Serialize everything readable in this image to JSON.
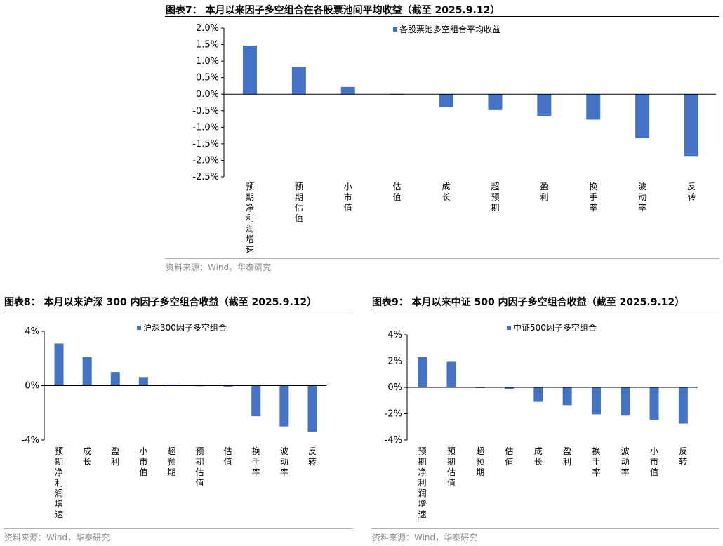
{
  "figures": [
    {
      "title": "图表7：  本月以来因子多空组合在各股票池间平均收益（截至 2025.9.12）",
      "source": "资料来源：Wind，华泰研究"
    },
    {
      "title": "图表8：  本月以来沪深 300 内因子多空组合收益（截至 2025.9.12）",
      "source": "资料来源：Wind，华泰研究"
    },
    {
      "title": "图表9：  本月以来中证 500 内因子多空组合收益（截至 2025.9.12）",
      "source": "资料来源：Wind，华泰研究"
    }
  ],
  "chart_data": [
    {
      "type": "bar",
      "title": "图表7：  本月以来因子多空组合在各股票池间平均收益（截至 2025.9.12）",
      "legend": "各股票池多空组合平均收益",
      "legend_position": "top-right",
      "categories": [
        "预期净利润增速",
        "预期估值",
        "小市值",
        "估值",
        "成长",
        "超预期",
        "盈利",
        "换手率",
        "波动率",
        "反转"
      ],
      "values": [
        1.47,
        0.82,
        0.22,
        0.0,
        -0.38,
        -0.48,
        -0.66,
        -0.77,
        -1.33,
        -1.87
      ],
      "ylim": [
        -2.5,
        2.0
      ],
      "yticks": [
        2.0,
        1.5,
        1.0,
        0.5,
        0.0,
        -0.5,
        -1.0,
        -1.5,
        -2.0,
        -2.5
      ],
      "ytick_labels": [
        "2.0%",
        "1.5%",
        "1.0%",
        "0.5%",
        "0.0%",
        "-0.5%",
        "-1.0%",
        "-1.5%",
        "-2.0%",
        "-2.5%"
      ],
      "unit": "%",
      "color": "#4472C4"
    },
    {
      "type": "bar",
      "title": "图表8：  本月以来沪深 300 内因子多空组合收益（截至 2025.9.12）",
      "legend": "沪深300因子多空组合",
      "legend_position": "top-right",
      "categories": [
        "预期净利润增速",
        "成长",
        "盈利",
        "小市值",
        "超预期",
        "预期估值",
        "估值",
        "换手率",
        "波动率",
        "反转"
      ],
      "values": [
        3.1,
        2.1,
        1.0,
        0.63,
        0.08,
        -0.02,
        -0.07,
        -2.25,
        -3.0,
        -3.4
      ],
      "ylim": [
        -4,
        4
      ],
      "yticks": [
        4,
        0,
        -4
      ],
      "ytick_labels": [
        "4%",
        "0%",
        "-4%"
      ],
      "unit": "%",
      "color": "#4472C4"
    },
    {
      "type": "bar",
      "title": "图表9：  本月以来中证 500 内因子多空组合收益（截至 2025.9.12）",
      "legend": "中证500因子多空组合",
      "legend_position": "top-right",
      "categories": [
        "预期净利润增速",
        "预期估值",
        "超预期",
        "估值",
        "成长",
        "盈利",
        "换手率",
        "波动率",
        "小市值",
        "反转"
      ],
      "values": [
        2.3,
        1.95,
        -0.05,
        -0.12,
        -1.1,
        -1.35,
        -2.05,
        -2.15,
        -2.45,
        -2.75
      ],
      "ylim": [
        -4,
        4
      ],
      "yticks": [
        4,
        2,
        0,
        -2,
        -4
      ],
      "ytick_labels": [
        "4%",
        "2%",
        "0%",
        "-2%",
        "-4%"
      ],
      "unit": "%",
      "color": "#4472C4"
    }
  ]
}
